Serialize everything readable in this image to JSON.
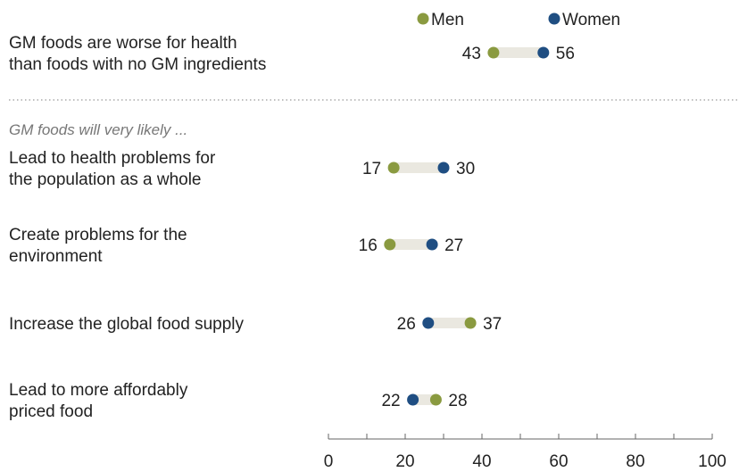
{
  "chart_data": {
    "type": "dot-plot",
    "title": "",
    "xlabel": "",
    "ylabel": "",
    "xlim": [
      0,
      100
    ],
    "ticks": [
      0,
      20,
      40,
      60,
      80,
      100
    ],
    "grid": false,
    "legend": {
      "placement": "top-right",
      "entries": [
        {
          "name": "Men",
          "color": "#8a9a40"
        },
        {
          "name": "Women",
          "color": "#1f4e82"
        }
      ]
    },
    "subheading": "GM foods will very likely ...",
    "categories": [
      [
        "GM foods are worse for health",
        "than foods with no GM ingredients"
      ],
      [
        "Lead to health problems for",
        "the population as a whole"
      ],
      [
        "Create problems for the",
        "environment"
      ],
      [
        "Increase the global food supply"
      ],
      [
        "Lead to more affordably",
        "priced food"
      ]
    ],
    "series": [
      {
        "name": "Men",
        "color": "#8a9a40",
        "values": [
          43,
          17,
          16,
          37,
          28
        ]
      },
      {
        "name": "Women",
        "color": "#1f4e82",
        "values": [
          56,
          30,
          27,
          26,
          22
        ]
      }
    ]
  }
}
